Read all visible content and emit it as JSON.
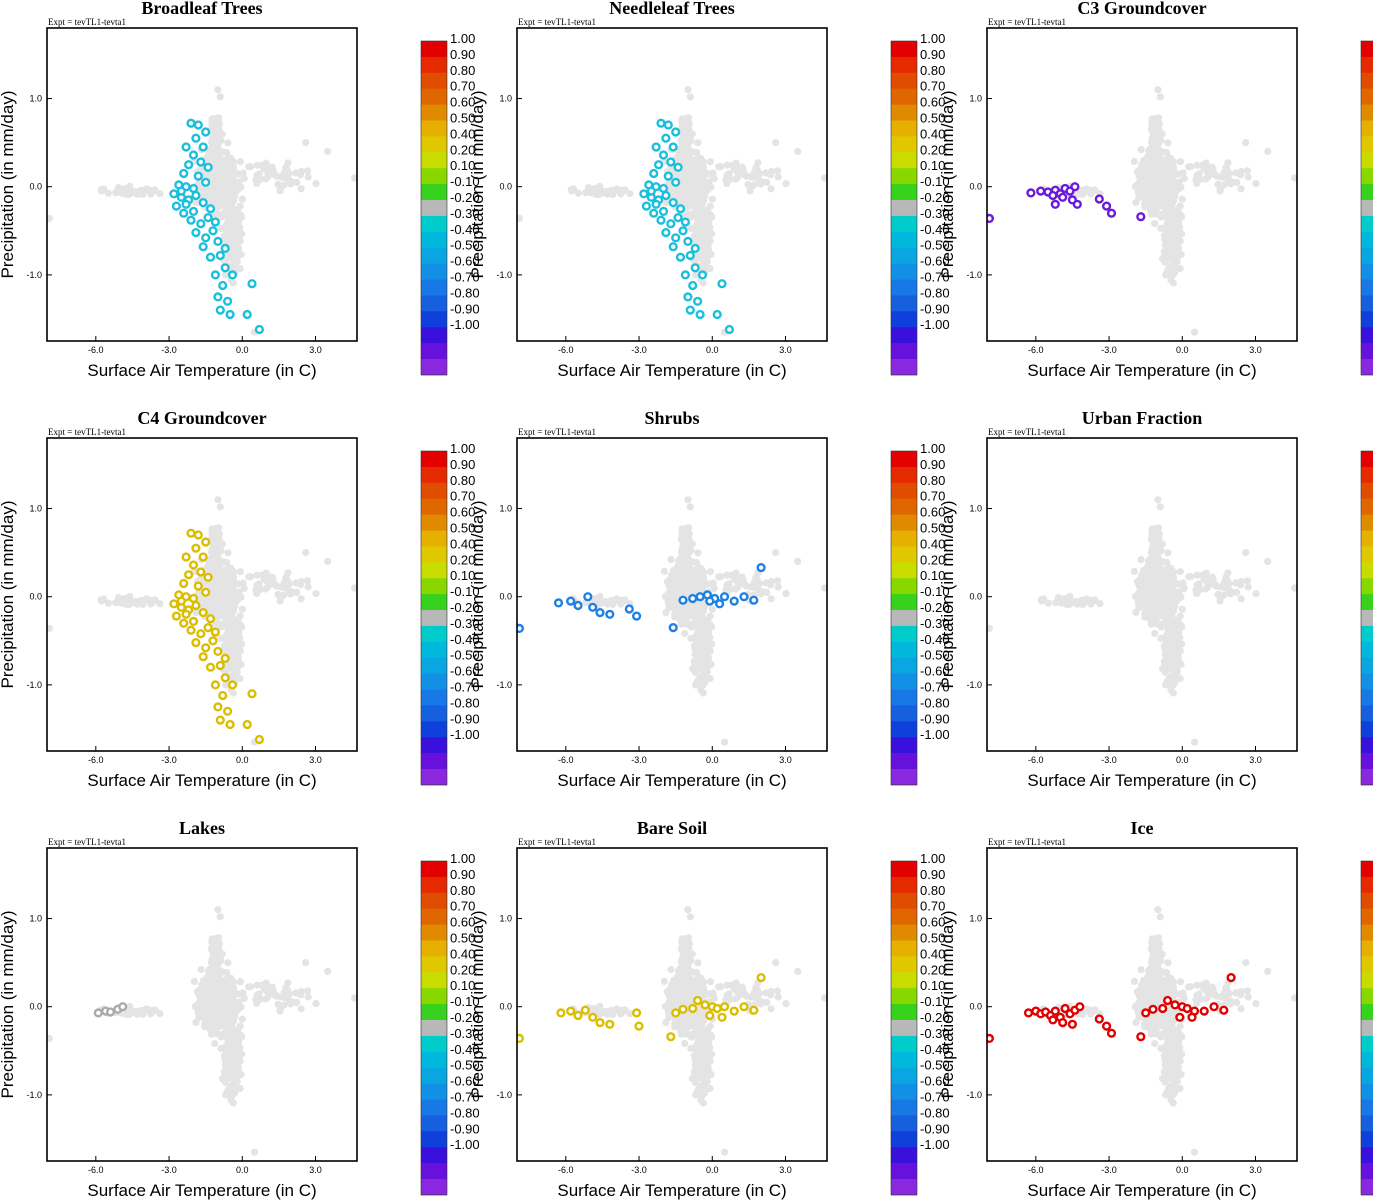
{
  "figure": {
    "expt_label": "Expt = tevTL1-tevta1",
    "xlabel": "Surface Air Temperature (in C)",
    "ylabel": "Precipitation (in mm/day)",
    "xlim": [
      -8.0,
      4.7
    ],
    "ylim": [
      -1.75,
      1.8
    ],
    "xticks": [
      "-6.0",
      "-3.0",
      "0.0",
      "3.0"
    ],
    "yticks": [
      "1.0",
      "0.0",
      "-1.0"
    ],
    "xtick_values": [
      -6,
      -3,
      0,
      3
    ],
    "ytick_values": [
      1,
      0,
      -1
    ],
    "background_color": "#e4e4e4"
  },
  "colorbar": {
    "labels": [
      "1.00",
      "0.90",
      "0.80",
      "0.70",
      "0.60",
      "0.50",
      "0.40",
      "0.20",
      "0.10",
      "-0.10",
      "-0.20",
      "-0.30",
      "-0.40",
      "-0.50",
      "-0.60",
      "-0.70",
      "-0.80",
      "-0.90",
      "-1.00"
    ],
    "colors": [
      "#e30000",
      "#e62a00",
      "#e04d00",
      "#e06600",
      "#e08a00",
      "#e6b000",
      "#e0c800",
      "#c8dc00",
      "#88d800",
      "#36d21e",
      "#b8b8b8",
      "#00cccc",
      "#00b8dc",
      "#0aa6e2",
      "#1290e6",
      "#1878e6",
      "#1660e0",
      "#1040dc",
      "#3a10dc",
      "#6612dc",
      "#8a28e0"
    ]
  },
  "chart_data": [
    {
      "type": "scatter",
      "title": "Broadleaf Trees",
      "xlabel": "Surface Air Temperature (in C)",
      "ylabel": "Precipitation (in mm/day)",
      "colored_group": "cluster_left",
      "highlight_color": "#19bfdc"
    },
    {
      "type": "scatter",
      "title": "Needleleaf Trees",
      "xlabel": "Surface Air Temperature (in C)",
      "ylabel": "Precipitation (in mm/day)",
      "colored_group": "cluster_left",
      "highlight_color": "#19bfdc"
    },
    {
      "type": "scatter",
      "title": "C3 Groundcover",
      "xlabel": "Surface Air Temperature (in C)",
      "ylabel": "Precipitation (in mm/day)",
      "colored_group": "c3",
      "highlight_color": "#6a1ad8"
    },
    {
      "type": "scatter",
      "title": "C4 Groundcover",
      "xlabel": "Surface Air Temperature (in C)",
      "ylabel": "Precipitation (in mm/day)",
      "colored_group": "cluster_left",
      "highlight_color": "#dbbd00"
    },
    {
      "type": "scatter",
      "title": "Shrubs",
      "xlabel": "Surface Air Temperature (in C)",
      "ylabel": "Precipitation (in mm/day)",
      "colored_group": "shrubs",
      "highlight_color": "#1e80e2"
    },
    {
      "type": "scatter",
      "title": "Urban Fraction",
      "xlabel": "Surface Air Temperature (in C)",
      "ylabel": "Precipitation (in mm/day)",
      "colored_group": "none",
      "highlight_color": "#e4e4e4"
    },
    {
      "type": "scatter",
      "title": "Lakes",
      "xlabel": "Surface Air Temperature (in C)",
      "ylabel": "Precipitation (in mm/day)",
      "colored_group": "lakes",
      "highlight_color": "#aaaaaa"
    },
    {
      "type": "scatter",
      "title": "Bare Soil",
      "xlabel": "Surface Air Temperature (in C)",
      "ylabel": "Precipitation (in mm/day)",
      "colored_group": "baresoil",
      "highlight_color": "#dbbd00"
    },
    {
      "type": "scatter",
      "title": "Ice",
      "xlabel": "Surface Air Temperature (in C)",
      "ylabel": "Precipitation (in mm/day)",
      "colored_group": "ice",
      "highlight_color": "#e00000"
    }
  ],
  "groups": {
    "cluster_left": [
      [
        -2.1,
        0.72
      ],
      [
        -1.8,
        0.7
      ],
      [
        -1.5,
        0.62
      ],
      [
        -1.9,
        0.55
      ],
      [
        -2.3,
        0.45
      ],
      [
        -1.6,
        0.45
      ],
      [
        -2.0,
        0.36
      ],
      [
        -1.7,
        0.28
      ],
      [
        -2.2,
        0.25
      ],
      [
        -1.4,
        0.22
      ],
      [
        -2.4,
        0.15
      ],
      [
        -1.8,
        0.12
      ],
      [
        -2.6,
        0.02
      ],
      [
        -2.3,
        0.0
      ],
      [
        -2.0,
        -0.02
      ],
      [
        -1.5,
        0.05
      ],
      [
        -2.8,
        -0.08
      ],
      [
        -2.5,
        -0.12
      ],
      [
        -2.2,
        -0.15
      ],
      [
        -1.9,
        -0.1
      ],
      [
        -1.6,
        -0.18
      ],
      [
        -2.7,
        -0.22
      ],
      [
        -2.4,
        -0.3
      ],
      [
        -2.0,
        -0.28
      ],
      [
        -1.3,
        -0.25
      ],
      [
        -2.1,
        -0.38
      ],
      [
        -1.7,
        -0.42
      ],
      [
        -1.4,
        -0.35
      ],
      [
        -1.9,
        -0.52
      ],
      [
        -1.5,
        -0.58
      ],
      [
        -1.2,
        -0.5
      ],
      [
        -1.6,
        -0.68
      ],
      [
        -1.0,
        -0.62
      ],
      [
        -1.3,
        -0.8
      ],
      [
        -0.9,
        -0.78
      ],
      [
        -0.7,
        -0.92
      ],
      [
        -1.1,
        -1.0
      ],
      [
        -0.4,
        -1.0
      ],
      [
        -0.8,
        -1.12
      ],
      [
        0.4,
        -1.1
      ],
      [
        -1.0,
        -1.25
      ],
      [
        -0.6,
        -1.3
      ],
      [
        -0.5,
        -1.45
      ],
      [
        -0.9,
        -1.4
      ],
      [
        0.2,
        -1.45
      ],
      [
        0.7,
        -1.62
      ],
      [
        -2.5,
        -0.05
      ],
      [
        -2.3,
        -0.2
      ],
      [
        -1.1,
        -0.4
      ],
      [
        -0.7,
        -0.7
      ]
    ],
    "c3": [
      [
        -7.9,
        -0.36
      ],
      [
        -6.2,
        -0.07
      ],
      [
        -5.8,
        -0.05
      ],
      [
        -5.5,
        -0.06
      ],
      [
        -5.2,
        -0.04
      ],
      [
        -5.0,
        -0.08
      ],
      [
        -4.8,
        -0.02
      ],
      [
        -4.6,
        -0.05
      ],
      [
        -4.4,
        0.0
      ],
      [
        -5.3,
        -0.1
      ],
      [
        -4.9,
        -0.12
      ],
      [
        -4.5,
        -0.15
      ],
      [
        -4.3,
        -0.2
      ],
      [
        -5.2,
        -0.2
      ],
      [
        -3.4,
        -0.14
      ],
      [
        -3.1,
        -0.22
      ],
      [
        -2.9,
        -0.3
      ],
      [
        -1.7,
        -0.34
      ]
    ],
    "shrubs": [
      [
        -7.9,
        -0.36
      ],
      [
        -6.3,
        -0.07
      ],
      [
        -5.8,
        -0.05
      ],
      [
        -5.5,
        -0.1
      ],
      [
        -5.1,
        0.0
      ],
      [
        -4.9,
        -0.12
      ],
      [
        -4.6,
        -0.18
      ],
      [
        -4.2,
        -0.2
      ],
      [
        -3.4,
        -0.14
      ],
      [
        -3.1,
        -0.22
      ],
      [
        -1.6,
        -0.35
      ],
      [
        -1.2,
        -0.04
      ],
      [
        -0.8,
        -0.02
      ],
      [
        -0.5,
        0.0
      ],
      [
        -0.2,
        0.02
      ],
      [
        0.1,
        -0.02
      ],
      [
        0.5,
        0.0
      ],
      [
        0.9,
        -0.05
      ],
      [
        1.3,
        0.0
      ],
      [
        1.7,
        -0.04
      ],
      [
        2.0,
        0.33
      ],
      [
        -0.1,
        -0.05
      ],
      [
        0.3,
        -0.08
      ]
    ],
    "lakes": [
      [
        -5.9,
        -0.07
      ],
      [
        -5.6,
        -0.05
      ],
      [
        -5.4,
        -0.06
      ],
      [
        -5.1,
        -0.03
      ],
      [
        -4.9,
        0.0
      ]
    ],
    "baresoil": [
      [
        -7.9,
        -0.36
      ],
      [
        -6.2,
        -0.07
      ],
      [
        -5.8,
        -0.05
      ],
      [
        -5.5,
        -0.1
      ],
      [
        -5.2,
        -0.04
      ],
      [
        -4.9,
        -0.12
      ],
      [
        -4.6,
        -0.18
      ],
      [
        -4.2,
        -0.2
      ],
      [
        -3.1,
        -0.07
      ],
      [
        -3.0,
        -0.22
      ],
      [
        -1.7,
        -0.34
      ],
      [
        -1.5,
        -0.07
      ],
      [
        -1.2,
        -0.03
      ],
      [
        -0.8,
        -0.02
      ],
      [
        -0.6,
        0.07
      ],
      [
        -0.3,
        0.02
      ],
      [
        0.0,
        0.0
      ],
      [
        0.2,
        -0.02
      ],
      [
        0.5,
        0.0
      ],
      [
        0.9,
        -0.05
      ],
      [
        1.3,
        0.0
      ],
      [
        1.7,
        -0.04
      ],
      [
        2.0,
        0.33
      ],
      [
        -0.1,
        -0.1
      ],
      [
        0.4,
        -0.12
      ]
    ],
    "ice": [
      [
        -7.9,
        -0.36
      ],
      [
        -6.3,
        -0.07
      ],
      [
        -6.0,
        -0.05
      ],
      [
        -5.8,
        -0.08
      ],
      [
        -5.6,
        -0.06
      ],
      [
        -5.4,
        -0.1
      ],
      [
        -5.2,
        -0.05
      ],
      [
        -5.0,
        -0.12
      ],
      [
        -4.8,
        -0.02
      ],
      [
        -4.6,
        -0.08
      ],
      [
        -4.4,
        -0.04
      ],
      [
        -4.2,
        0.0
      ],
      [
        -5.3,
        -0.15
      ],
      [
        -4.9,
        -0.18
      ],
      [
        -4.5,
        -0.2
      ],
      [
        -3.4,
        -0.14
      ],
      [
        -3.1,
        -0.22
      ],
      [
        -2.9,
        -0.3
      ],
      [
        -1.7,
        -0.34
      ],
      [
        -1.5,
        -0.07
      ],
      [
        -1.2,
        -0.03
      ],
      [
        -0.8,
        -0.02
      ],
      [
        -0.6,
        0.07
      ],
      [
        -0.3,
        0.02
      ],
      [
        0.0,
        0.0
      ],
      [
        0.2,
        -0.02
      ],
      [
        0.5,
        -0.05
      ],
      [
        0.9,
        -0.05
      ],
      [
        1.3,
        0.0
      ],
      [
        1.7,
        -0.04
      ],
      [
        2.0,
        0.33
      ],
      [
        -0.1,
        -0.12
      ],
      [
        0.4,
        -0.12
      ]
    ]
  }
}
